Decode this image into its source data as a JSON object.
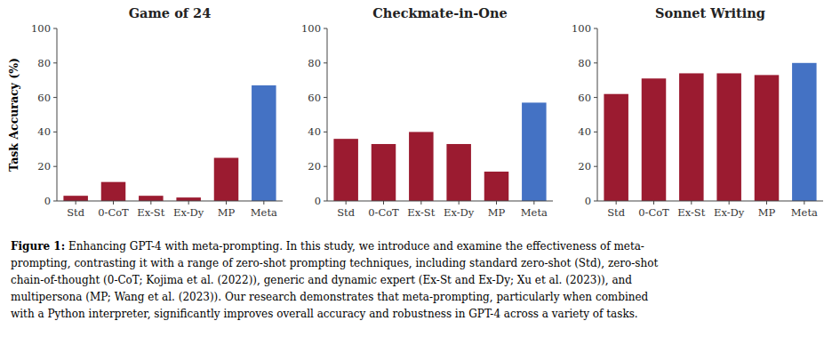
{
  "chart_data": [
    {
      "type": "bar",
      "title": "Game of 24",
      "categories": [
        "Std",
        "0-CoT",
        "Ex-St",
        "Ex-Dy",
        "MP",
        "Meta"
      ],
      "values": [
        3,
        11,
        3,
        2,
        25,
        67
      ],
      "colors": [
        "#9B1B30",
        "#9B1B30",
        "#9B1B30",
        "#9B1B30",
        "#9B1B30",
        "#4472C4"
      ],
      "ylabel": "Task Accuracy (%)",
      "ylim": [
        0,
        100
      ],
      "yticks": [
        0,
        20,
        40,
        60,
        80,
        100
      ],
      "grid": false
    },
    {
      "type": "bar",
      "title": "Checkmate-in-One",
      "categories": [
        "Std",
        "0-CoT",
        "Ex-St",
        "Ex-Dy",
        "MP",
        "Meta"
      ],
      "values": [
        36,
        33,
        40,
        33,
        17,
        57
      ],
      "colors": [
        "#9B1B30",
        "#9B1B30",
        "#9B1B30",
        "#9B1B30",
        "#9B1B30",
        "#4472C4"
      ],
      "ylim": [
        0,
        100
      ],
      "yticks": [
        0,
        20,
        40,
        60,
        80,
        100
      ],
      "grid": false
    },
    {
      "type": "bar",
      "title": "Sonnet Writing",
      "categories": [
        "Std",
        "0-CoT",
        "Ex-St",
        "Ex-Dy",
        "MP",
        "Meta"
      ],
      "values": [
        62,
        71,
        74,
        74,
        73,
        80
      ],
      "colors": [
        "#9B1B30",
        "#9B1B30",
        "#9B1B30",
        "#9B1B30",
        "#9B1B30",
        "#4472C4"
      ],
      "ylim": [
        0,
        100
      ],
      "yticks": [
        0,
        20,
        40,
        60,
        80,
        100
      ],
      "grid": false
    }
  ],
  "caption": {
    "bold": "Figure 1:",
    "lines": [
      " Enhancing GPT-4 with meta-prompting. In this study, we introduce and examine the effectiveness of meta-",
      "prompting, contrasting it with a range of zero-shot prompting techniques, including standard zero-shot (Std), zero-shot",
      "chain-of-thought (0-CoT; Kojima et al. (2022)), generic and dynamic expert (Ex-St and Ex-Dy; Xu et al. (2023)), and",
      "multipersona (MP; Wang et al. (2023)). Our research demonstrates that meta-prompting, particularly when combined",
      "with a Python interpreter, significantly improves overall accuracy and robustness in GPT-4 across a variety of tasks."
    ]
  }
}
